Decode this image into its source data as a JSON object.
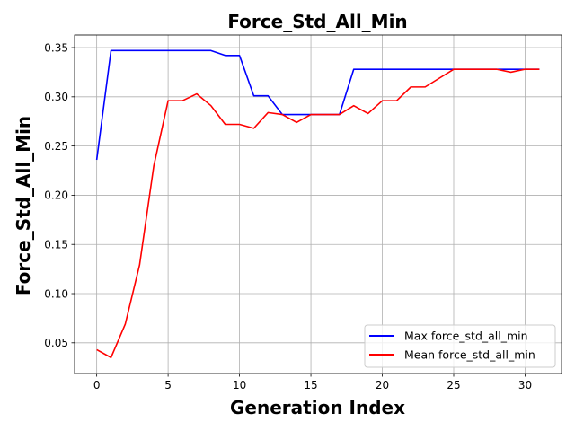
{
  "chart_data": {
    "type": "line",
    "title": "Force_Std_All_Min",
    "xlabel": "Generation Index",
    "ylabel": "Force_Std_All_Min",
    "xlim": [
      -1.55,
      32.55
    ],
    "ylim": [
      0.0188,
      0.3628
    ],
    "xticks": [
      0,
      5,
      10,
      15,
      20,
      25,
      30
    ],
    "yticks": [
      0.05,
      0.1,
      0.15,
      0.2,
      0.25,
      0.3,
      0.35
    ],
    "xtick_labels": [
      "0",
      "5",
      "10",
      "15",
      "20",
      "25",
      "30"
    ],
    "ytick_labels": [
      "0.05",
      "0.10",
      "0.15",
      "0.20",
      "0.25",
      "0.30",
      "0.35"
    ],
    "grid": true,
    "legend_position": "lower-right",
    "x": [
      0,
      1,
      2,
      3,
      4,
      5,
      6,
      7,
      8,
      9,
      10,
      11,
      12,
      13,
      14,
      15,
      16,
      17,
      18,
      19,
      20,
      21,
      22,
      23,
      24,
      25,
      26,
      27,
      28,
      29,
      30,
      31
    ],
    "series": [
      {
        "name": "Max force_std_all_min",
        "color": "#0000ff",
        "values": [
          0.236,
          0.347,
          0.347,
          0.347,
          0.347,
          0.347,
          0.347,
          0.347,
          0.347,
          0.342,
          0.342,
          0.301,
          0.301,
          0.282,
          0.282,
          0.282,
          0.282,
          0.282,
          0.328,
          0.328,
          0.328,
          0.328,
          0.328,
          0.328,
          0.328,
          0.328,
          0.328,
          0.328,
          0.328,
          0.328,
          0.328,
          0.328
        ]
      },
      {
        "name": "Mean force_std_all_min",
        "color": "#ff0000",
        "values": [
          0.043,
          0.035,
          0.069,
          0.129,
          0.23,
          0.296,
          0.296,
          0.303,
          0.291,
          0.272,
          0.272,
          0.268,
          0.284,
          0.282,
          0.274,
          0.282,
          0.282,
          0.282,
          0.291,
          0.283,
          0.296,
          0.296,
          0.31,
          0.31,
          0.319,
          0.328,
          0.328,
          0.328,
          0.328,
          0.325,
          0.328,
          0.328
        ]
      }
    ]
  }
}
